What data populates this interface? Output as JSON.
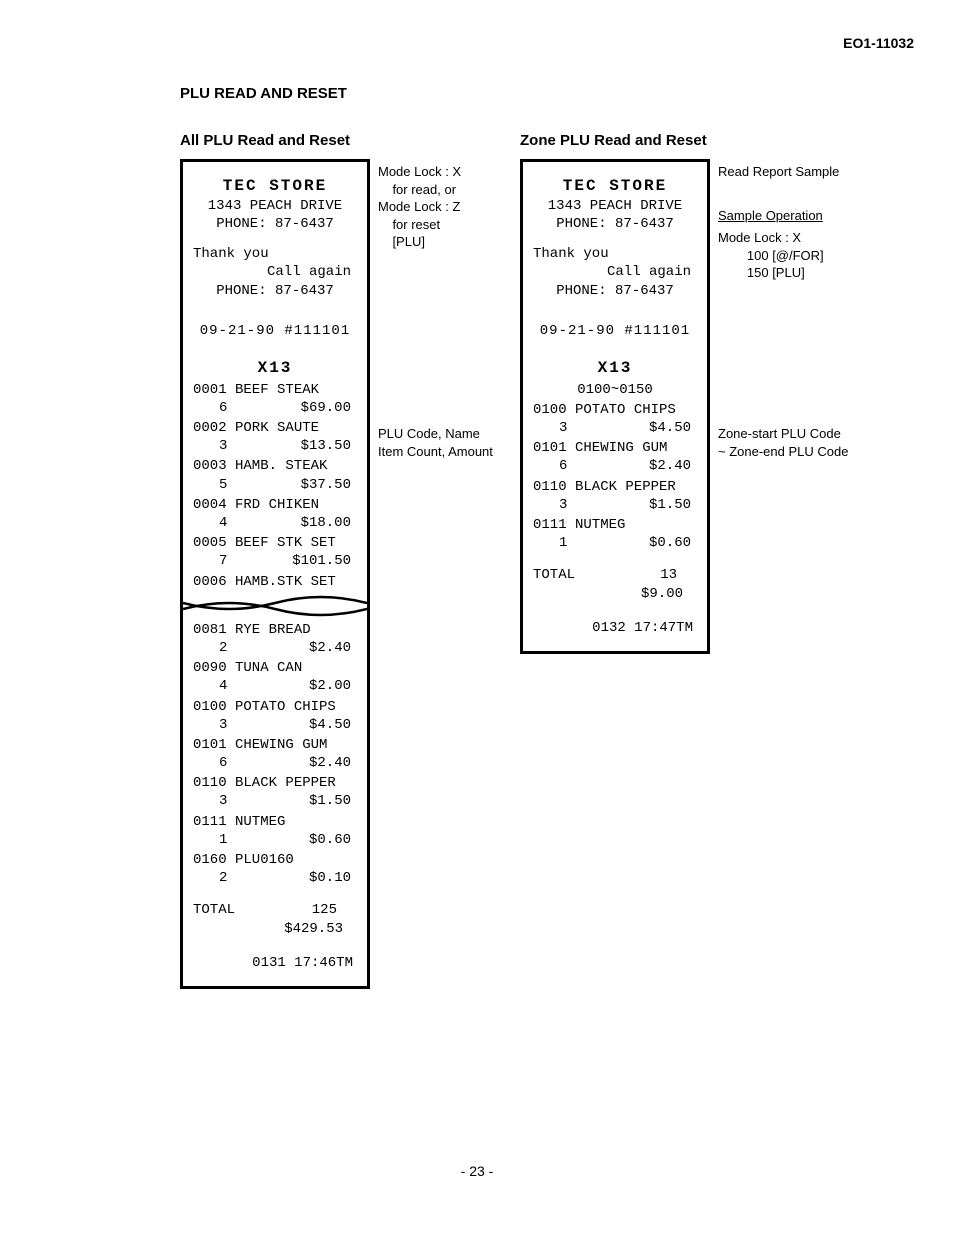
{
  "doc_id": "EO1-11032",
  "page_title": "PLU READ AND RESET",
  "page_number": "- 23 -",
  "left": {
    "section_title": "All PLU Read and Reset",
    "store_name": "TEC STORE",
    "addr": "1343 PEACH DRIVE",
    "phone": "PHONE: 87-6437",
    "thank": "Thank you",
    "call_again": "Call again",
    "phone2": "PHONE: 87-6437",
    "date": "09-21-90  #111101",
    "x": "X13",
    "items_top": [
      {
        "code": "0001",
        "name": "BEEF STEAK",
        "count": "6",
        "amt": "$69.00"
      },
      {
        "code": "0002",
        "name": "PORK SAUTE",
        "count": "3",
        "amt": "$13.50"
      },
      {
        "code": "0003",
        "name": "HAMB. STEAK",
        "count": "5",
        "amt": "$37.50"
      },
      {
        "code": "0004",
        "name": "FRD CHIKEN",
        "count": "4",
        "amt": "$18.00"
      },
      {
        "code": "0005",
        "name": "BEEF STK SET",
        "count": "7",
        "amt": "$101.50"
      },
      {
        "code": "0006",
        "name": "HAMB.STK SET",
        "count": "",
        "amt": ""
      }
    ],
    "items_bottom": [
      {
        "code": "0081",
        "name": "RYE BREAD",
        "count": "2",
        "amt": "$2.40"
      },
      {
        "code": "0090",
        "name": "TUNA CAN",
        "count": "4",
        "amt": "$2.00"
      },
      {
        "code": "0100",
        "name": "POTATO CHIPS",
        "count": "3",
        "amt": "$4.50"
      },
      {
        "code": "0101",
        "name": "CHEWING GUM",
        "count": "6",
        "amt": "$2.40"
      },
      {
        "code": "0110",
        "name": "BLACK PEPPER",
        "count": "3",
        "amt": "$1.50"
      },
      {
        "code": "0111",
        "name": "NUTMEG",
        "count": "1",
        "amt": "$0.60"
      },
      {
        "code": "0160",
        "name": "PLU0160",
        "count": "2",
        "amt": "$0.10"
      }
    ],
    "total_label": "TOTAL",
    "total_count": "125",
    "total_amt": "$429.53",
    "timestamp": "0131 17:46TM",
    "annot1": "Mode Lock : X\n    for read, or\nMode Lock : Z\n    for reset\n    [PLU]",
    "annot2": "PLU Code, Name\nItem Count, Amount"
  },
  "right": {
    "section_title": "Zone PLU Read and Reset",
    "store_name": "TEC STORE",
    "addr": "1343 PEACH DRIVE",
    "phone": "PHONE: 87-6437",
    "thank": "Thank you",
    "call_again": "Call again",
    "phone2": "PHONE: 87-6437",
    "date": "09-21-90  #111101",
    "x": "X13",
    "range": "0100~0150",
    "items": [
      {
        "code": "0100",
        "name": "POTATO CHIPS",
        "count": "3",
        "amt": "$4.50"
      },
      {
        "code": "0101",
        "name": "CHEWING GUM",
        "count": "6",
        "amt": "$2.40"
      },
      {
        "code": "0110",
        "name": "BLACK PEPPER",
        "count": "3",
        "amt": "$1.50"
      },
      {
        "code": "0111",
        "name": "NUTMEG",
        "count": "1",
        "amt": "$0.60"
      }
    ],
    "total_label": "TOTAL",
    "total_count": "13",
    "total_amt": "$9.00",
    "timestamp": "0132 17:47TM",
    "annot1": "Read Report Sample",
    "annot2": "Sample Operation",
    "annot3": "Mode Lock : X\n        100 [@/FOR]\n        150 [PLU]",
    "annot4": "Zone-start PLU Code\n~ Zone-end PLU Code"
  }
}
